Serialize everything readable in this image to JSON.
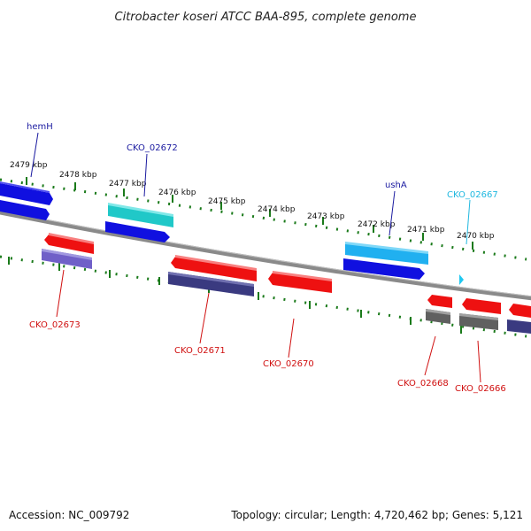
{
  "title": "Citrobacter koseri ATCC BAA-895, complete genome",
  "footer": {
    "accession": "Accession: NC_009792",
    "summary": "Topology: circular; Length: 4,720,462 bp; Genes: 5,121"
  },
  "kbp_labels": [
    "2479 kbp",
    "2478 kbp",
    "2477 kbp",
    "2476 kbp",
    "2475 kbp",
    "2474 kbp",
    "2473 kbp",
    "2472 kbp",
    "2471 kbp",
    "2470 kbp"
  ],
  "gene_labels": {
    "hemH": "hemH",
    "cko_02672": "CKO_02672",
    "usha": "ushA",
    "cko_02667": "CKO_02667",
    "cko_02673": "CKO_02673",
    "cko_02671": "CKO_02671",
    "cko_02670": "CKO_02670",
    "cko_02668": "CKO_02668",
    "cko_02666": "CKO_02666"
  },
  "colors": {
    "blue_gene": "#1010e0",
    "cyan_gene": "#20c8c8",
    "sky_gene": "#20b0f0",
    "red_gene": "#ee1111",
    "violet_gene": "#7060c8",
    "navy_gene": "#3a3a80",
    "gray_gene": "#606060",
    "backbone": "#8a8a8a",
    "ticks": "#1a7a1a",
    "label_blue": "#1a1aa0",
    "label_cyan": "#20b8e0",
    "label_red": "#d01010"
  }
}
